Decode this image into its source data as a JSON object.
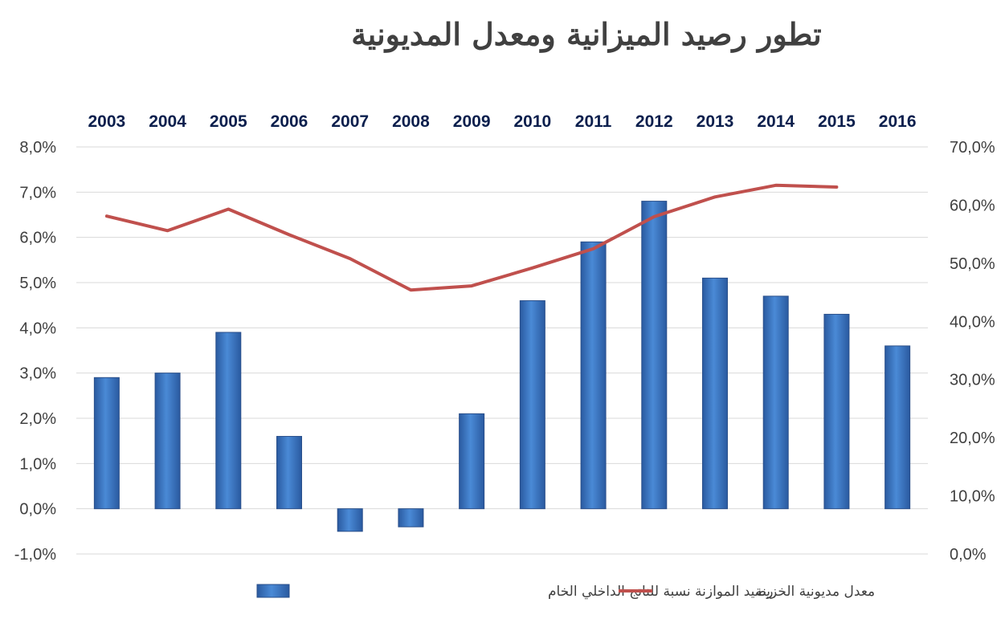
{
  "chart_data": {
    "type": "bar",
    "title": "تطور رصيد الميزانية ومعدل المديونية",
    "categories": [
      "2003",
      "2004",
      "2005",
      "2006",
      "2007",
      "2008",
      "2009",
      "2010",
      "2011",
      "2012",
      "2013",
      "2014",
      "2015",
      "2016"
    ],
    "y_left": {
      "min": -1,
      "max": 8,
      "step": 1,
      "tick_labels": [
        "-1,0%",
        "0,0%",
        "1,0%",
        "2,0%",
        "3,0%",
        "4,0%",
        "5,0%",
        "6,0%",
        "7,0%",
        "8,0%"
      ]
    },
    "y_right": {
      "min": 0,
      "max": 70,
      "step": 10,
      "tick_labels": [
        "0,0%",
        "10,0%",
        "20,0%",
        "30,0%",
        "40,0%",
        "50,0%",
        "60,0%",
        "70,0%"
      ]
    },
    "grid": true,
    "legend_position": "bottom",
    "series": [
      {
        "name": "رصيد الموازنة نسبة للناتج الداخلي الخام",
        "type": "bar",
        "axis": "left",
        "color": "#3a73c2",
        "values": [
          2.9,
          3.0,
          3.9,
          1.6,
          -0.5,
          -0.4,
          2.1,
          4.6,
          5.9,
          6.8,
          5.1,
          4.7,
          4.3,
          3.6
        ]
      },
      {
        "name": "معدل مديونية الخزينة",
        "type": "line",
        "axis": "right",
        "color": "#c0504d",
        "values": [
          58.1,
          55.6,
          59.3,
          54.9,
          50.8,
          45.4,
          46.1,
          49.2,
          52.5,
          58.0,
          61.4,
          63.4,
          63.1,
          null
        ]
      }
    ]
  }
}
